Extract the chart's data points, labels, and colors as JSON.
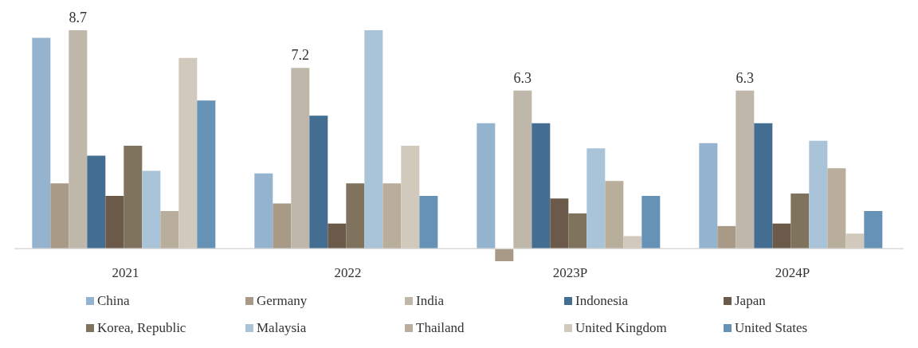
{
  "chart_data": {
    "type": "bar",
    "categories": [
      "2021",
      "2022",
      "2023P",
      "2024P"
    ],
    "series": [
      {
        "name": "China",
        "color": "#93b3cf",
        "values": [
          8.4,
          3.0,
          5.0,
          4.2
        ]
      },
      {
        "name": "Germany",
        "color": "#a89a86",
        "values": [
          2.6,
          1.8,
          -0.5,
          0.9
        ]
      },
      {
        "name": "India",
        "color": "#bfb8aa",
        "values": [
          8.7,
          7.2,
          6.3,
          6.3
        ],
        "value_labels": [
          "8.7",
          "7.2",
          "6.3",
          "6.3"
        ]
      },
      {
        "name": "Indonesia",
        "color": "#436d91",
        "values": [
          3.7,
          5.3,
          5.0,
          5.0
        ]
      },
      {
        "name": "Japan",
        "color": "#6b5a4a",
        "values": [
          2.1,
          1.0,
          2.0,
          1.0
        ]
      },
      {
        "name": "Korea, Republic",
        "color": "#7f735d",
        "values": [
          4.1,
          2.6,
          1.4,
          2.2
        ]
      },
      {
        "name": "Malaysia",
        "color": "#a9c3d9",
        "values": [
          3.1,
          8.7,
          4.0,
          4.3
        ]
      },
      {
        "name": "Thailand",
        "color": "#b9ad9b",
        "values": [
          1.5,
          2.6,
          2.7,
          3.2
        ]
      },
      {
        "name": "United Kingdom",
        "color": "#d0c9bc",
        "values": [
          7.6,
          4.1,
          0.5,
          0.6
        ]
      },
      {
        "name": "United States",
        "color": "#6592b5",
        "values": [
          5.9,
          2.1,
          2.1,
          1.5
        ]
      }
    ],
    "legend": "bottom",
    "grid": false,
    "marker": "square"
  }
}
